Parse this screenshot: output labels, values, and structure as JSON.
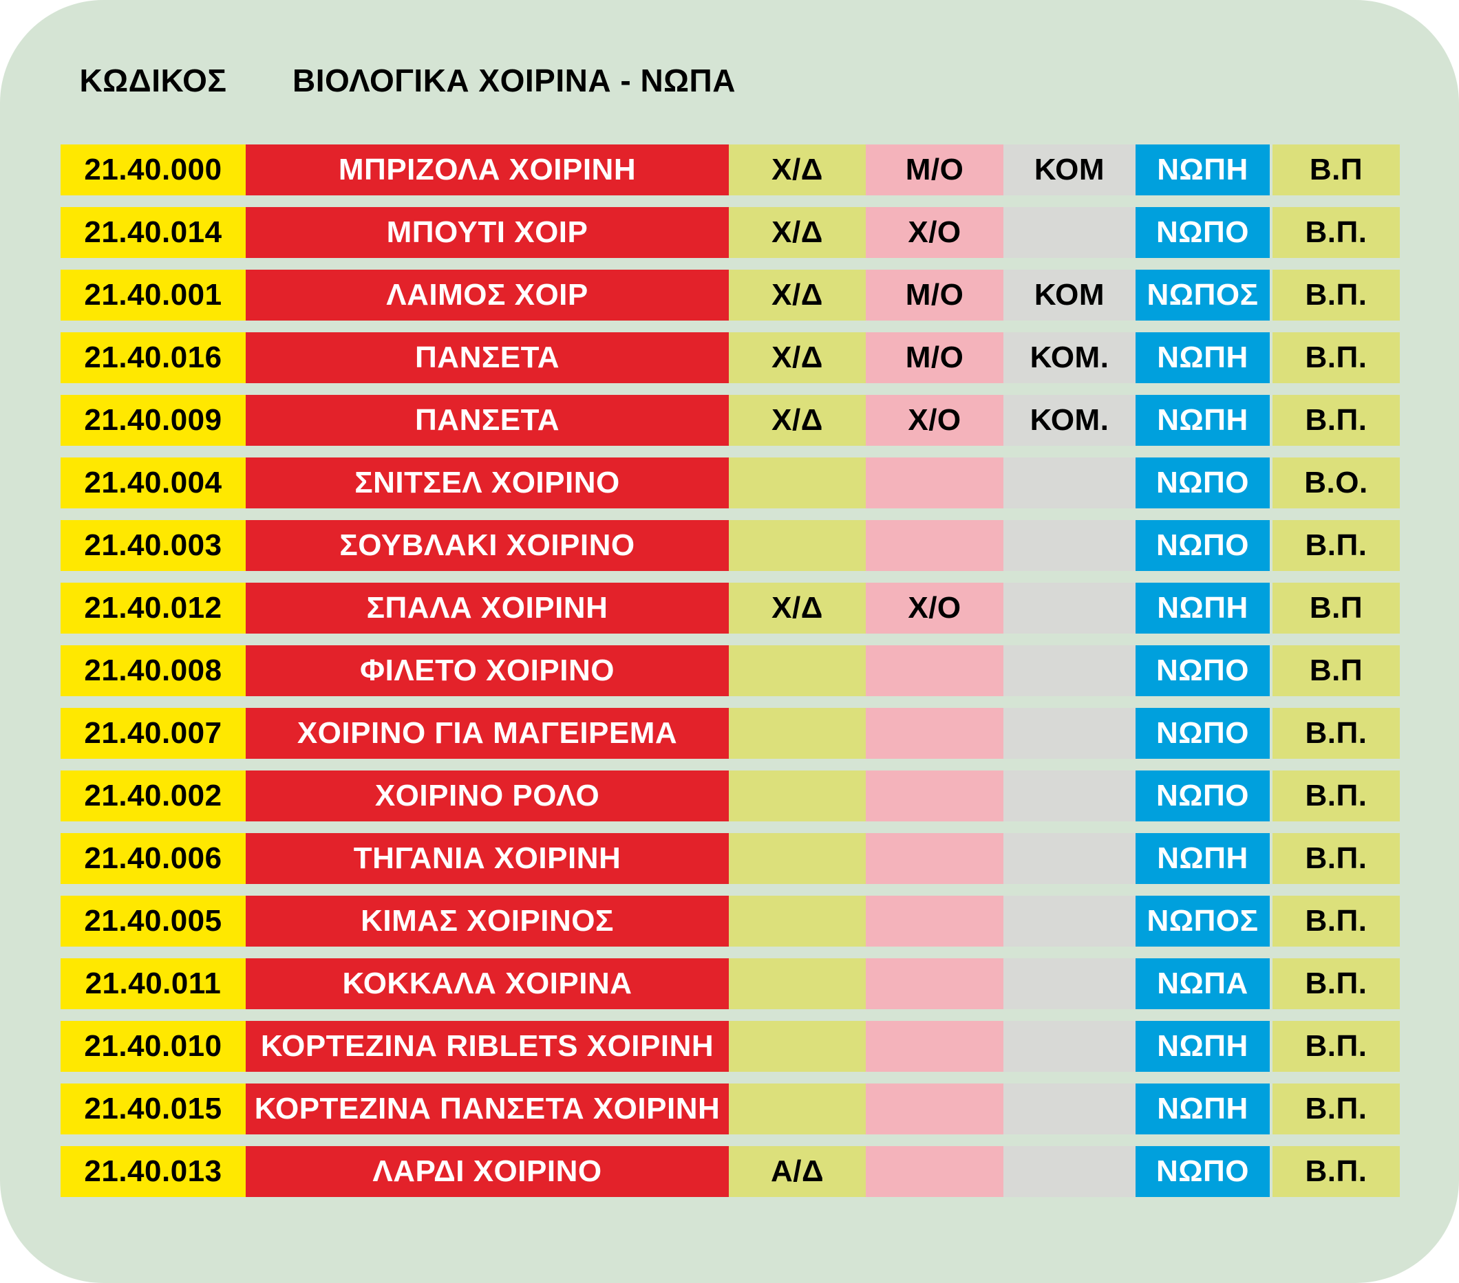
{
  "header": {
    "code_label": "ΚΩΔΙΚΟΣ",
    "title": "ΒΙΟΛΟΓΙΚΑ ΧΟΙΡΙΝΑ - ΝΩΠΑ"
  },
  "colors": {
    "background": "#d5e4d4",
    "code_bg": "#ffe800",
    "name_bg": "#e3222a",
    "option_bg": "#dce07b",
    "bone_bg": "#f4b3bb",
    "piece_bg": "#d8d9d6",
    "fresh_bg": "#00a0dd",
    "text_dark": "#000000",
    "text_light": "#ffffff"
  },
  "rows": [
    {
      "code": "21.40.000",
      "name": "ΜΠΡΙΖΟΛΑ ΧΟΙΡΙΝΗ",
      "xd": "Χ/Δ",
      "mo": "Μ/Ο",
      "kom": "ΚΟΜ",
      "fresh": "ΝΩΠΗ",
      "bp": "Β.Π"
    },
    {
      "code": "21.40.014",
      "name": "ΜΠΟΥΤΙ ΧΟΙΡ",
      "xd": "Χ/Δ",
      "mo": "Χ/Ο",
      "kom": "",
      "fresh": "ΝΩΠΟ",
      "bp": "Β.Π."
    },
    {
      "code": "21.40.001",
      "name": "ΛΑΙΜΟΣ ΧΟΙΡ",
      "xd": "Χ/Δ",
      "mo": "Μ/Ο",
      "kom": "ΚΟΜ",
      "fresh": "ΝΩΠΟΣ",
      "bp": "Β.Π."
    },
    {
      "code": "21.40.016",
      "name": "ΠΑΝΣΕΤΑ",
      "xd": "Χ/Δ",
      "mo": "Μ/Ο",
      "kom": "ΚΟΜ.",
      "fresh": "ΝΩΠΗ",
      "bp": "Β.Π."
    },
    {
      "code": "21.40.009",
      "name": "ΠΑΝΣΕΤΑ",
      "xd": "Χ/Δ",
      "mo": "Χ/Ο",
      "kom": "ΚΟΜ.",
      "fresh": "ΝΩΠΗ",
      "bp": "Β.Π."
    },
    {
      "code": "21.40.004",
      "name": "ΣΝΙΤΣΕΛ ΧΟΙΡΙΝΟ",
      "xd": "",
      "mo": "",
      "kom": "",
      "fresh": "ΝΩΠΟ",
      "bp": "Β.Ο."
    },
    {
      "code": "21.40.003",
      "name": "ΣΟΥΒΛΑΚΙ ΧΟΙΡΙΝΟ",
      "xd": "",
      "mo": "",
      "kom": "",
      "fresh": "ΝΩΠΟ",
      "bp": "Β.Π."
    },
    {
      "code": "21.40.012",
      "name": "ΣΠΑΛΑ ΧΟΙΡΙΝΗ",
      "xd": "Χ/Δ",
      "mo": "Χ/Ο",
      "kom": "",
      "fresh": "ΝΩΠΗ",
      "bp": "Β.Π"
    },
    {
      "code": "21.40.008",
      "name": "ΦΙΛΕΤΟ ΧΟΙΡΙΝΟ",
      "xd": "",
      "mo": "",
      "kom": "",
      "fresh": "ΝΩΠΟ",
      "bp": "Β.Π"
    },
    {
      "code": "21.40.007",
      "name": "ΧΟΙΡΙΝΟ ΓΙΑ ΜΑΓΕΙΡΕΜΑ",
      "xd": "",
      "mo": "",
      "kom": "",
      "fresh": "ΝΩΠΟ",
      "bp": "Β.Π."
    },
    {
      "code": "21.40.002",
      "name": "ΧΟΙΡΙΝΟ ΡΟΛΟ",
      "xd": "",
      "mo": "",
      "kom": "",
      "fresh": "ΝΩΠΟ",
      "bp": "Β.Π."
    },
    {
      "code": "21.40.006",
      "name": "ΤΗΓΑΝΙΑ ΧΟΙΡΙΝΗ",
      "xd": "",
      "mo": "",
      "kom": "",
      "fresh": "ΝΩΠΗ",
      "bp": "Β.Π."
    },
    {
      "code": "21.40.005",
      "name": "ΚΙΜΑΣ ΧΟΙΡΙΝΟΣ",
      "xd": "",
      "mo": "",
      "kom": "",
      "fresh": "ΝΩΠΟΣ",
      "bp": "Β.Π."
    },
    {
      "code": "21.40.011",
      "name": "ΚΟΚΚΑΛΑ ΧΟΙΡΙΝΑ",
      "xd": "",
      "mo": "",
      "kom": "",
      "fresh": "ΝΩΠΑ",
      "bp": "Β.Π."
    },
    {
      "code": "21.40.010",
      "name": "ΚΟΡΤΕΖΙΝΑ RIBLETS ΧΟΙΡΙΝΗ",
      "xd": "",
      "mo": "",
      "kom": "",
      "fresh": "ΝΩΠΗ",
      "bp": "Β.Π."
    },
    {
      "code": "21.40.015",
      "name": "ΚΟΡΤΕΖΙΝΑ ΠΑΝΣΕΤΑ ΧΟΙΡΙΝΗ",
      "xd": "",
      "mo": "",
      "kom": "",
      "fresh": "ΝΩΠΗ",
      "bp": "Β.Π."
    },
    {
      "code": "21.40.013",
      "name": "ΛΑΡΔΙ ΧΟΙΡΙΝΟ",
      "xd": "Α/Δ",
      "mo": "",
      "kom": "",
      "fresh": "ΝΩΠΟ",
      "bp": "Β.Π."
    }
  ]
}
